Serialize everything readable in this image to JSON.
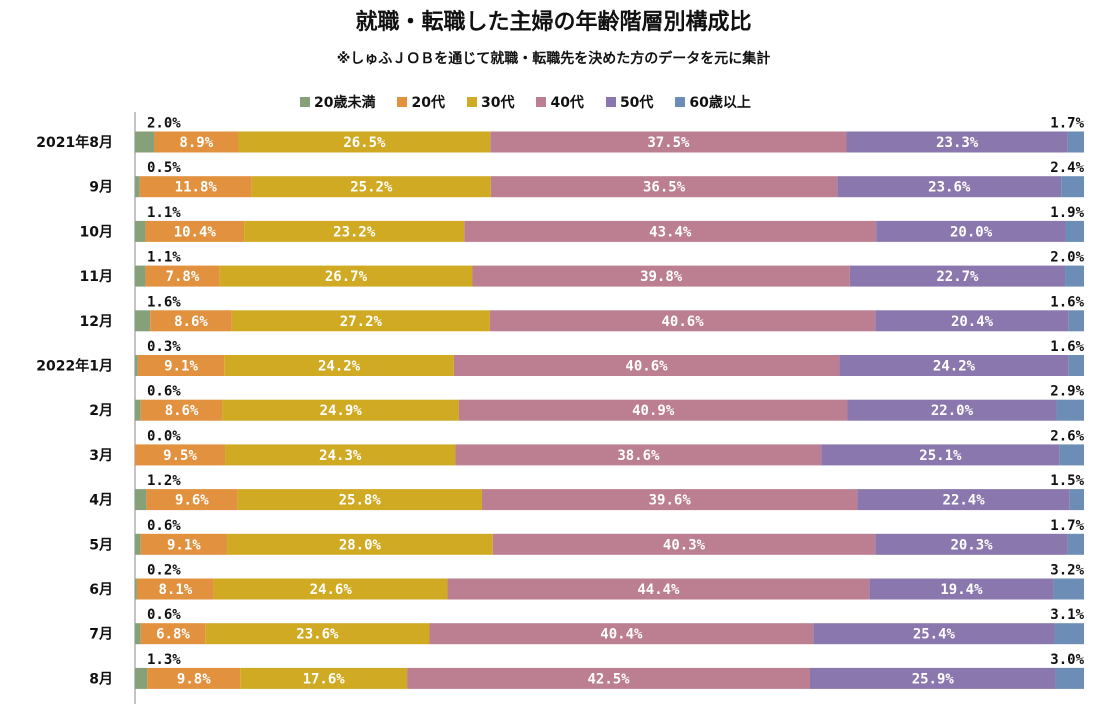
{
  "title": "就職・転職した主婦の年齢階層別構成比",
  "subtitle": "※しゅふＪＯＢを通じて就職・転職先を決めた方のデータを元に集計",
  "chart_data": {
    "type": "bar",
    "orientation": "horizontal",
    "stacked": "100%",
    "legend_position": "top",
    "categories": [
      "2021年8月",
      "9月",
      "10月",
      "11月",
      "12月",
      "2022年1月",
      "2月",
      "3月",
      "4月",
      "5月",
      "6月",
      "7月",
      "8月"
    ],
    "series": [
      {
        "name": "20歳未満",
        "color": "#86a07a",
        "values": [
          2.0,
          0.5,
          1.1,
          1.1,
          1.6,
          0.3,
          0.6,
          0.0,
          1.2,
          0.6,
          0.2,
          0.6,
          1.3
        ]
      },
      {
        "name": "20代",
        "color": "#e2913f",
        "values": [
          8.9,
          11.8,
          10.4,
          7.8,
          8.6,
          9.1,
          8.6,
          9.5,
          9.6,
          9.1,
          8.1,
          6.8,
          9.8
        ]
      },
      {
        "name": "30代",
        "color": "#d1aa24",
        "values": [
          26.5,
          25.2,
          23.2,
          26.7,
          27.2,
          24.2,
          24.9,
          24.3,
          25.8,
          28.0,
          24.6,
          23.6,
          17.6
        ]
      },
      {
        "name": "40代",
        "color": "#bc7f91",
        "values": [
          37.5,
          36.5,
          43.4,
          39.8,
          40.6,
          40.6,
          40.9,
          38.6,
          39.6,
          40.3,
          44.4,
          40.4,
          42.5
        ]
      },
      {
        "name": "50代",
        "color": "#8a77ad",
        "values": [
          23.3,
          23.6,
          20.0,
          22.7,
          20.4,
          24.2,
          22.0,
          25.1,
          22.4,
          20.3,
          19.4,
          25.4,
          25.9
        ]
      },
      {
        "name": "60歳以上",
        "color": "#6c8db5",
        "values": [
          1.7,
          2.4,
          1.9,
          2.0,
          1.6,
          1.6,
          2.9,
          2.6,
          1.5,
          1.7,
          3.2,
          3.1,
          3.0
        ]
      }
    ],
    "value_format": "0.0%"
  }
}
